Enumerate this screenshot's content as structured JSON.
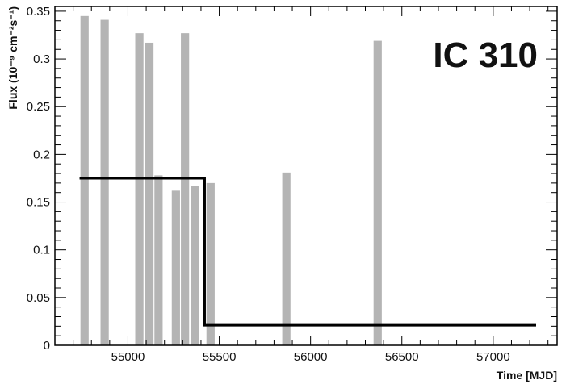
{
  "chart_data": {
    "type": "bar",
    "title": "",
    "annotation": "IC 310",
    "xlabel": "Time [MJD]",
    "ylabel": "Flux (10⁻⁹ cm⁻²s⁻¹)",
    "xlim": [
      54600,
      57350
    ],
    "ylim": [
      0,
      0.355
    ],
    "xticks": [
      55000,
      55500,
      56000,
      56500,
      57000
    ],
    "yticks": [
      0,
      0.05,
      0.1,
      0.15,
      0.2,
      0.25,
      0.3,
      0.35
    ],
    "yticklabels": [
      "0",
      "0.05",
      "0.1",
      "0.15",
      "0.2",
      "0.25",
      "0.3",
      "0.35"
    ],
    "bar_color": "#b4b4b4",
    "line_color": "#000000",
    "bars": [
      {
        "x_start": 54740,
        "x_end": 54785,
        "value": 0.345
      },
      {
        "x_start": 54850,
        "x_end": 54895,
        "value": 0.341
      },
      {
        "x_start": 55040,
        "x_end": 55085,
        "value": 0.327
      },
      {
        "x_start": 55095,
        "x_end": 55140,
        "value": 0.317
      },
      {
        "x_start": 55145,
        "x_end": 55190,
        "value": 0.178
      },
      {
        "x_start": 55240,
        "x_end": 55285,
        "value": 0.162
      },
      {
        "x_start": 55290,
        "x_end": 55335,
        "value": 0.327
      },
      {
        "x_start": 55345,
        "x_end": 55390,
        "value": 0.167
      },
      {
        "x_start": 55430,
        "x_end": 55475,
        "value": 0.17
      },
      {
        "x_start": 55845,
        "x_end": 55890,
        "value": 0.181
      },
      {
        "x_start": 56345,
        "x_end": 56390,
        "value": 0.319
      }
    ],
    "step_line": [
      {
        "x": 54735,
        "y": 0.175
      },
      {
        "x": 55420,
        "y": 0.175
      },
      {
        "x": 55420,
        "y": 0.021
      },
      {
        "x": 57235,
        "y": 0.021
      }
    ]
  }
}
